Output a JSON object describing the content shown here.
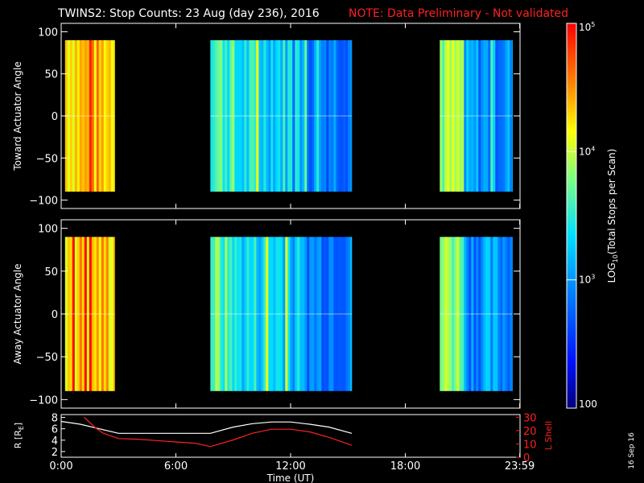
{
  "header": {
    "title": "TWINS2: Stop Counts: 23 Aug (day 236), 2016",
    "note": "NOTE: Data Preliminary - Not validated",
    "note_color": "#ff2020"
  },
  "footer": {
    "date_stamp": "16 Sep 16"
  },
  "chart_data": [
    {
      "type": "heatmap",
      "name": "toward-panel",
      "ylabel": "Toward Actuator Angle",
      "ylim": [
        -110,
        110
      ],
      "yticks": [
        -100,
        -50,
        0,
        50,
        100
      ],
      "ytick_labels": [
        "−100",
        "−50",
        "0",
        "50",
        "100"
      ],
      "xlim": [
        0,
        24
      ],
      "angle_range": [
        -90,
        90
      ],
      "data_segments_hours": [
        [
          0.2,
          2.8
        ],
        [
          7.8,
          15.2
        ],
        [
          19.8,
          23.6
        ]
      ],
      "colorscale_log10_range": [
        2,
        5
      ]
    },
    {
      "type": "heatmap",
      "name": "away-panel",
      "ylabel": "Away Actuator Angle",
      "ylim": [
        -110,
        110
      ],
      "yticks": [
        -100,
        -50,
        0,
        50,
        100
      ],
      "ytick_labels": [
        "−100",
        "−50",
        "0",
        "50",
        "100"
      ],
      "xlim": [
        0,
        24
      ],
      "angle_range": [
        -90,
        90
      ],
      "data_segments_hours": [
        [
          0.2,
          2.8
        ],
        [
          7.8,
          15.2
        ],
        [
          19.8,
          23.6
        ]
      ],
      "colorscale_log10_range": [
        2,
        5
      ]
    },
    {
      "type": "line",
      "name": "orbit-panel",
      "xlabel": "Time (UT)",
      "xlim": [
        0,
        24
      ],
      "xticks": [
        0,
        6,
        12,
        18,
        23.983
      ],
      "xtick_labels": [
        "0:00",
        "6:00",
        "12:00",
        "18:00",
        "23:59"
      ],
      "left_axis": {
        "label": "R [R",
        "label_sub": "E",
        "label_end": "]",
        "ylim": [
          1,
          8.5
        ],
        "yticks": [
          2,
          4,
          6,
          8
        ],
        "ytick_labels": [
          "2",
          "4",
          "6",
          "8"
        ],
        "color": "#ffffff"
      },
      "right_axis": {
        "label": "L Shell",
        "ylim": [
          0,
          32
        ],
        "yticks": [
          0,
          10,
          20,
          30
        ],
        "ytick_labels": [
          "0",
          "10",
          "20",
          "30"
        ],
        "color": "#ff2020"
      },
      "series": [
        {
          "name": "R",
          "axis": "left",
          "color": "#ffffff",
          "x": [
            0,
            1,
            2,
            3,
            4,
            5,
            6,
            7,
            7.8,
            9,
            10,
            11,
            12,
            13,
            14,
            15.2
          ],
          "values": [
            7.3,
            6.8,
            6.0,
            5.2,
            5.2,
            5.2,
            5.2,
            5.2,
            5.2,
            6.3,
            6.9,
            7.2,
            7.2,
            6.8,
            6.3,
            5.2
          ]
        },
        {
          "name": "L Shell",
          "axis": "right",
          "color": "#ff2020",
          "x": [
            1.2,
            1.8,
            2.2,
            3.0,
            4.0,
            5.0,
            6.0,
            7.0,
            7.8,
            9.0,
            10.0,
            11.0,
            12.0,
            13.0,
            14.0,
            15.2
          ],
          "values": [
            30,
            22,
            18,
            14,
            13.5,
            12.5,
            11.5,
            10.5,
            8,
            13,
            18,
            21,
            21,
            19,
            15,
            9
          ]
        }
      ]
    },
    {
      "type": "colorbar",
      "name": "colorbar",
      "label_pre": "LOG",
      "label_sub": "10",
      "label_post": "(Total Stops per Scan)",
      "range_log10": [
        2,
        5
      ],
      "ticks_log10": [
        2,
        3,
        4,
        5
      ],
      "tick_labels": [
        {
          "base": "100",
          "exp": ""
        },
        {
          "base": "10",
          "exp": "3"
        },
        {
          "base": "10",
          "exp": "4"
        },
        {
          "base": "10",
          "exp": "5"
        }
      ]
    }
  ]
}
